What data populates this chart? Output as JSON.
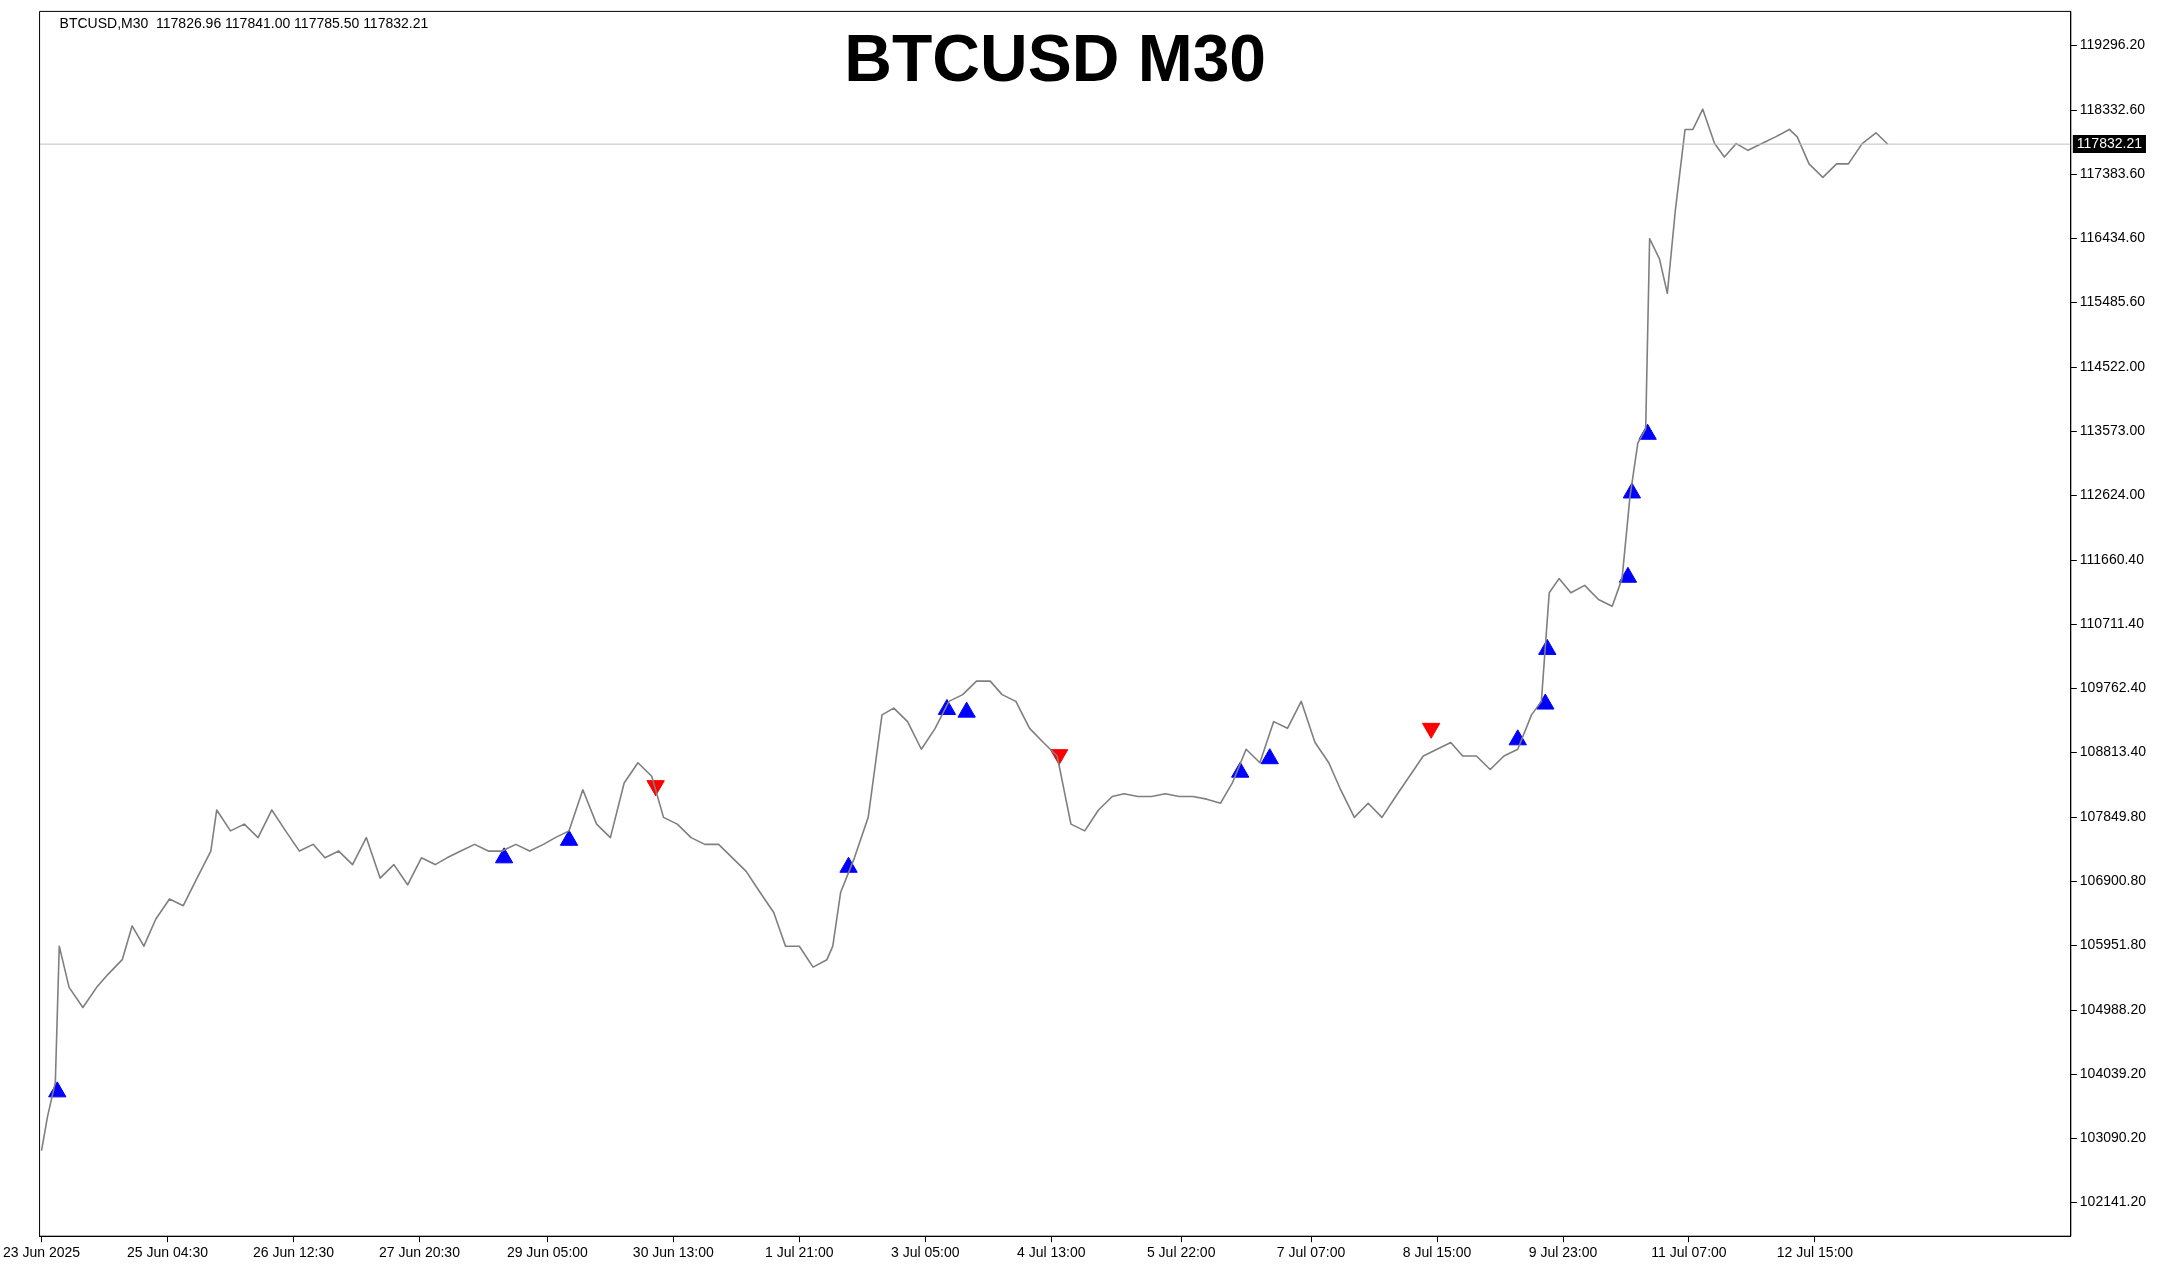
{
  "chart_data": {
    "type": "line",
    "title": "BTCUSD M30",
    "annotations": [
      "BTCUSD,M30  117826.96 117841.00 117785.50 117832.21"
    ],
    "xlim": [
      "2025-06-23T20:00",
      "2025-07-15T08:00"
    ],
    "ylim": [
      101640,
      119800
    ],
    "xticks": [
      {
        "value": "2025-06-23T20:30",
        "label": "23 Jun 2025"
      },
      {
        "value": "2025-06-25T04:30",
        "label": "25 Jun 04:30"
      },
      {
        "value": "2025-06-26T12:30",
        "label": "26 Jun 12:30"
      },
      {
        "value": "2025-06-27T20:30",
        "label": "27 Jun 20:30"
      },
      {
        "value": "2025-06-29T05:00",
        "label": "29 Jun 05:00"
      },
      {
        "value": "2025-06-30T13:00",
        "label": "30 Jun 13:00"
      },
      {
        "value": "2025-07-01T21:00",
        "label": "1 Jul 21:00"
      },
      {
        "value": "2025-07-03T05:00",
        "label": "3 Jul 05:00"
      },
      {
        "value": "2025-07-04T13:00",
        "label": "4 Jul 13:00"
      },
      {
        "value": "2025-07-05T22:00",
        "label": "5 Jul 22:00"
      },
      {
        "value": "2025-07-07T07:00",
        "label": "7 Jul 07:00"
      },
      {
        "value": "2025-07-08T15:00",
        "label": "8 Jul 15:00"
      },
      {
        "value": "2025-07-09T23:00",
        "label": "9 Jul 23:00"
      },
      {
        "value": "2025-07-11T07:00",
        "label": "11 Jul 07:00"
      },
      {
        "value": "2025-07-12T15:00",
        "label": "12 Jul 15:00"
      }
    ],
    "yticks": [
      {
        "value": 102141.2,
        "label": "102141.20"
      },
      {
        "value": 103090.2,
        "label": "103090.20"
      },
      {
        "value": 104039.2,
        "label": "104039.20"
      },
      {
        "value": 104988.2,
        "label": "104988.20"
      },
      {
        "value": 105951.8,
        "label": "105951.80"
      },
      {
        "value": 106900.8,
        "label": "106900.80"
      },
      {
        "value": 107849.8,
        "label": "107849.80"
      },
      {
        "value": 108813.4,
        "label": "108813.40"
      },
      {
        "value": 109762.4,
        "label": "109762.40"
      },
      {
        "value": 110711.4,
        "label": "110711.40"
      },
      {
        "value": 111660.4,
        "label": "111660.40"
      },
      {
        "value": 112624,
        "label": "112624.00"
      },
      {
        "value": 113573,
        "label": "113573.00"
      },
      {
        "value": 114522,
        "label": "114522.00"
      },
      {
        "value": 115485.6,
        "label": "115485.60"
      },
      {
        "value": 116434.6,
        "label": "116434.60"
      },
      {
        "value": 117383.6,
        "label": "117383.60"
      },
      {
        "value": 118332.6,
        "label": "118332.60"
      },
      {
        "value": 119296.2,
        "label": "119296.20"
      }
    ],
    "grid": false,
    "legend": false,
    "ref_lines": [
      {
        "axis": "y",
        "value": 117832.21,
        "label": "117832.21",
        "color": "#c0c0c0"
      }
    ],
    "series": [
      {
        "color": "#7f7f7f",
        "marker": "none",
        "x": [
          "2025-06-23T20:30",
          "2025-06-23T22:00",
          "2025-06-24T00:00",
          "2025-06-24T01:00",
          "2025-06-24T03:30",
          "2025-06-24T07:00",
          "2025-06-24T10:30",
          "2025-06-24T13:30",
          "2025-06-24T17:00",
          "2025-06-24T19:30",
          "2025-06-24T22:30",
          "2025-06-25T01:30",
          "2025-06-25T05:00",
          "2025-06-25T08:30",
          "2025-06-25T12:00",
          "2025-06-25T15:30",
          "2025-06-25T17:00",
          "2025-06-25T20:30",
          "2025-06-26T00:00",
          "2025-06-26T03:30",
          "2025-06-26T07:00",
          "2025-06-26T10:30",
          "2025-06-26T14:00",
          "2025-06-26T17:30",
          "2025-06-26T20:30",
          "2025-06-27T00:00",
          "2025-06-27T03:30",
          "2025-06-27T07:00",
          "2025-06-27T10:30",
          "2025-06-27T14:00",
          "2025-06-27T17:30",
          "2025-06-27T21:00",
          "2025-06-28T00:30",
          "2025-06-28T03:30",
          "2025-06-28T07:00",
          "2025-06-28T10:30",
          "2025-06-28T14:00",
          "2025-06-28T17:30",
          "2025-06-28T21:00",
          "2025-06-29T00:30",
          "2025-06-29T04:00",
          "2025-06-29T07:00",
          "2025-06-29T10:30",
          "2025-06-29T14:00",
          "2025-06-29T17:30",
          "2025-06-29T21:00",
          "2025-06-30T00:30",
          "2025-06-30T04:00",
          "2025-06-30T07:30",
          "2025-06-30T10:30",
          "2025-06-30T14:00",
          "2025-06-30T17:30",
          "2025-06-30T21:00",
          "2025-07-01T00:30",
          "2025-07-01T04:00",
          "2025-07-01T07:30",
          "2025-07-01T11:00",
          "2025-07-01T14:30",
          "2025-07-01T17:30",
          "2025-07-01T21:00",
          "2025-07-02T00:30",
          "2025-07-02T04:00",
          "2025-07-02T05:30",
          "2025-07-02T07:30",
          "2025-07-02T11:00",
          "2025-07-02T14:30",
          "2025-07-02T18:00",
          "2025-07-02T21:00",
          "2025-07-03T00:30",
          "2025-07-03T04:00",
          "2025-07-03T07:30",
          "2025-07-03T11:00",
          "2025-07-03T14:30",
          "2025-07-03T18:00",
          "2025-07-03T21:30",
          "2025-07-04T00:30",
          "2025-07-04T04:00",
          "2025-07-04T07:30",
          "2025-07-04T11:00",
          "2025-07-04T14:30",
          "2025-07-04T18:00",
          "2025-07-04T21:30",
          "2025-07-05T01:00",
          "2025-07-05T04:30",
          "2025-07-05T07:30",
          "2025-07-05T11:00",
          "2025-07-05T14:30",
          "2025-07-05T18:00",
          "2025-07-05T21:30",
          "2025-07-06T01:00",
          "2025-07-06T04:30",
          "2025-07-06T08:00",
          "2025-07-06T11:00",
          "2025-07-06T14:30",
          "2025-07-06T18:00",
          "2025-07-06T21:30",
          "2025-07-07T01:00",
          "2025-07-07T04:30",
          "2025-07-07T08:00",
          "2025-07-07T11:30",
          "2025-07-07T14:30",
          "2025-07-07T18:00",
          "2025-07-07T21:30",
          "2025-07-08T01:00",
          "2025-07-08T04:30",
          "2025-07-08T08:00",
          "2025-07-08T11:30",
          "2025-07-08T15:00",
          "2025-07-08T18:30",
          "2025-07-08T21:30",
          "2025-07-09T01:00",
          "2025-07-09T04:30",
          "2025-07-09T08:00",
          "2025-07-09T11:30",
          "2025-07-09T15:00",
          "2025-07-09T17:30",
          "2025-07-09T19:30",
          "2025-07-09T22:00",
          "2025-07-10T01:00",
          "2025-07-10T04:30",
          "2025-07-10T08:00",
          "2025-07-10T11:30",
          "2025-07-10T14:00",
          "2025-07-10T16:00",
          "2025-07-10T18:00",
          "2025-07-10T20:00",
          "2025-07-10T21:00",
          "2025-07-10T23:30",
          "2025-07-11T01:30",
          "2025-07-11T03:30",
          "2025-07-11T06:00",
          "2025-07-11T08:00",
          "2025-07-11T10:30",
          "2025-07-11T13:30",
          "2025-07-11T16:00",
          "2025-07-11T19:00",
          "2025-07-11T22:00",
          "2025-07-12T01:30",
          "2025-07-12T05:00",
          "2025-07-12T08:30",
          "2025-07-12T10:30",
          "2025-07-12T13:30",
          "2025-07-12T17:00",
          "2025-07-12T20:30",
          "2025-07-12T23:30",
          "2025-07-13T03:00",
          "2025-07-13T06:30",
          "2025-07-13T09:30"
        ],
        "values": [
          102910,
          103410,
          103920,
          105940,
          105330,
          105030,
          105330,
          105530,
          105740,
          106240,
          105940,
          106340,
          106640,
          106540,
          106950,
          107350,
          107960,
          107650,
          107750,
          107550,
          107960,
          107650,
          107350,
          107450,
          107250,
          107350,
          107150,
          107550,
          106950,
          107150,
          106850,
          107250,
          107150,
          107250,
          107350,
          107450,
          107350,
          107350,
          107450,
          107350,
          107450,
          107550,
          107650,
          108260,
          107750,
          107550,
          108360,
          108660,
          108460,
          107850,
          107750,
          107550,
          107450,
          107450,
          107250,
          107050,
          106740,
          106440,
          105940,
          105940,
          105630,
          105740,
          105940,
          106740,
          107250,
          107850,
          109370,
          109470,
          109270,
          108860,
          109170,
          109570,
          109670,
          109870,
          109870,
          109670,
          109570,
          109170,
          108960,
          108760,
          107750,
          107650,
          107960,
          108160,
          108200,
          108160,
          108160,
          108200,
          108160,
          108160,
          108120,
          108060,
          108360,
          108860,
          108660,
          109270,
          109170,
          109570,
          108960,
          108660,
          108260,
          107850,
          108060,
          107850,
          108160,
          108460,
          108760,
          108860,
          108960,
          108760,
          108760,
          108560,
          108760,
          108860,
          109370,
          109570,
          111180,
          111390,
          111180,
          111290,
          111080,
          110980,
          111390,
          112600,
          113400,
          113610,
          116430,
          116130,
          115620,
          116830,
          118050,
          118050,
          118350,
          117840,
          117640,
          117840,
          117740,
          117840,
          117940,
          118050,
          117940,
          117540,
          117340,
          117540,
          117540,
          117840,
          118000,
          117830
        ]
      },
      {
        "type": "scatter",
        "color": "#0000ff",
        "marker": "triangle",
        "x": [
          "2025-06-24T00:30",
          "2025-06-28T18:00",
          "2025-06-29T10:30",
          "2025-07-02T09:30",
          "2025-07-03T10:30",
          "2025-07-03T15:30",
          "2025-07-06T13:00",
          "2025-07-06T20:30",
          "2025-07-09T11:30",
          "2025-07-09T18:30",
          "2025-07-09T19:00",
          "2025-07-10T15:30",
          "2025-07-10T16:30",
          "2025-07-10T20:30"
        ],
        "values": [
          103780,
          107250,
          107510,
          107110,
          109450,
          109410,
          108520,
          108720,
          109000,
          109530,
          110340,
          111410,
          112660,
          113530
        ]
      },
      {
        "type": "scatter",
        "color": "#ff0000",
        "marker": "triangle",
        "x": [
          "2025-06-30T08:30",
          "2025-07-04T15:00",
          "2025-07-08T13:30"
        ],
        "values": [
          108320,
          108780,
          109170
        ]
      }
    ]
  }
}
